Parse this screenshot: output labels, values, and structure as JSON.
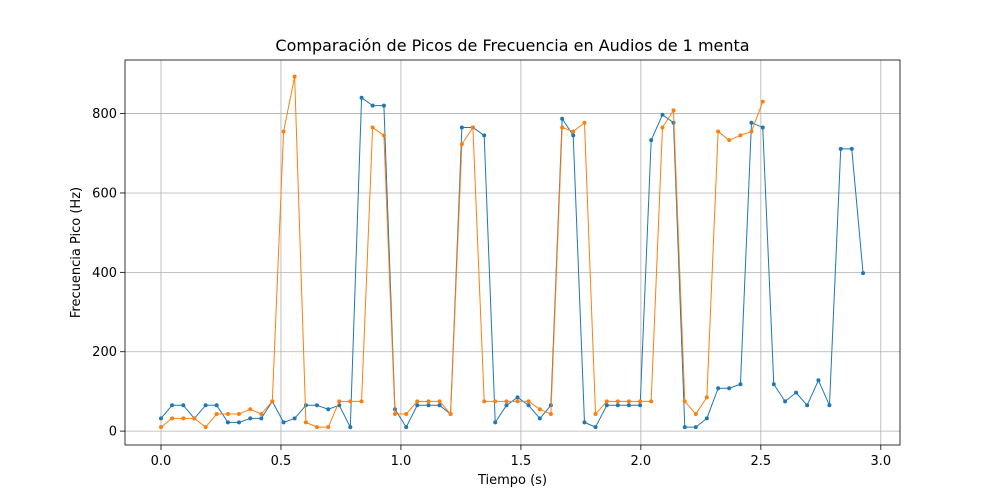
{
  "chart_data": {
    "type": "line",
    "title": "Comparación de Picos de Frecuencia en Audios de 1 menta",
    "xlabel": "Tiempo (s)",
    "ylabel": "Frecuencia Pico (Hz)",
    "xlim": [
      -0.15,
      3.08
    ],
    "ylim": [
      -35,
      935
    ],
    "x_ticks": [
      0.0,
      0.5,
      1.0,
      1.5,
      2.0,
      2.5,
      3.0
    ],
    "x_tick_labels": [
      "0.0",
      "0.5",
      "1.0",
      "1.5",
      "2.0",
      "2.5",
      "3.0"
    ],
    "y_ticks": [
      0,
      200,
      400,
      600,
      800
    ],
    "y_tick_labels": [
      "0",
      "200",
      "400",
      "600",
      "800"
    ],
    "grid": true,
    "series": [
      {
        "color": "#1f77b4",
        "x": [
          0.0,
          0.046,
          0.093,
          0.139,
          0.186,
          0.232,
          0.279,
          0.325,
          0.372,
          0.418,
          0.464,
          0.511,
          0.557,
          0.604,
          0.65,
          0.697,
          0.743,
          0.789,
          0.836,
          0.882,
          0.929,
          0.975,
          1.022,
          1.068,
          1.115,
          1.161,
          1.207,
          1.254,
          1.3,
          1.347,
          1.393,
          1.44,
          1.486,
          1.532,
          1.579,
          1.625,
          1.672,
          1.718,
          1.765,
          1.811,
          1.858,
          1.904,
          1.95,
          1.997,
          2.043,
          2.09,
          2.136,
          2.183,
          2.229,
          2.275,
          2.322,
          2.368,
          2.415,
          2.461,
          2.508,
          2.554,
          2.601,
          2.647,
          2.693,
          2.74,
          2.786,
          2.833,
          2.879,
          2.926
        ],
        "y": [
          32,
          65,
          65,
          32,
          65,
          65,
          22,
          22,
          32,
          32,
          75,
          22,
          32,
          65,
          65,
          55,
          65,
          10,
          840,
          820,
          820,
          55,
          10,
          65,
          65,
          65,
          43,
          765,
          765,
          745,
          22,
          65,
          85,
          65,
          32,
          65,
          787,
          745,
          22,
          10,
          65,
          65,
          65,
          65,
          733,
          797,
          777,
          10,
          10,
          32,
          108,
          108,
          118,
          777,
          765,
          118,
          75,
          97,
          65,
          128,
          65,
          711,
          711,
          398
        ]
      },
      {
        "color": "#ff7f0e",
        "x": [
          0.0,
          0.046,
          0.093,
          0.139,
          0.186,
          0.232,
          0.279,
          0.325,
          0.372,
          0.418,
          0.464,
          0.511,
          0.557,
          0.604,
          0.65,
          0.697,
          0.743,
          0.789,
          0.836,
          0.882,
          0.929,
          0.975,
          1.022,
          1.068,
          1.115,
          1.161,
          1.207,
          1.254,
          1.3,
          1.347,
          1.393,
          1.44,
          1.486,
          1.532,
          1.579,
          1.625,
          1.672,
          1.718,
          1.765,
          1.811,
          1.858,
          1.904,
          1.95,
          1.997,
          2.043,
          2.09,
          2.136,
          2.183,
          2.229,
          2.275,
          2.322,
          2.368,
          2.415,
          2.461,
          2.508
        ],
        "y": [
          10,
          32,
          32,
          32,
          10,
          43,
          43,
          43,
          55,
          43,
          75,
          755,
          893,
          22,
          10,
          10,
          75,
          75,
          75,
          765,
          745,
          43,
          43,
          75,
          75,
          75,
          43,
          723,
          765,
          75,
          75,
          75,
          75,
          75,
          55,
          43,
          765,
          755,
          777,
          43,
          75,
          75,
          75,
          75,
          75,
          765,
          808,
          75,
          43,
          85,
          755,
          733,
          745,
          755,
          830
        ]
      }
    ]
  }
}
